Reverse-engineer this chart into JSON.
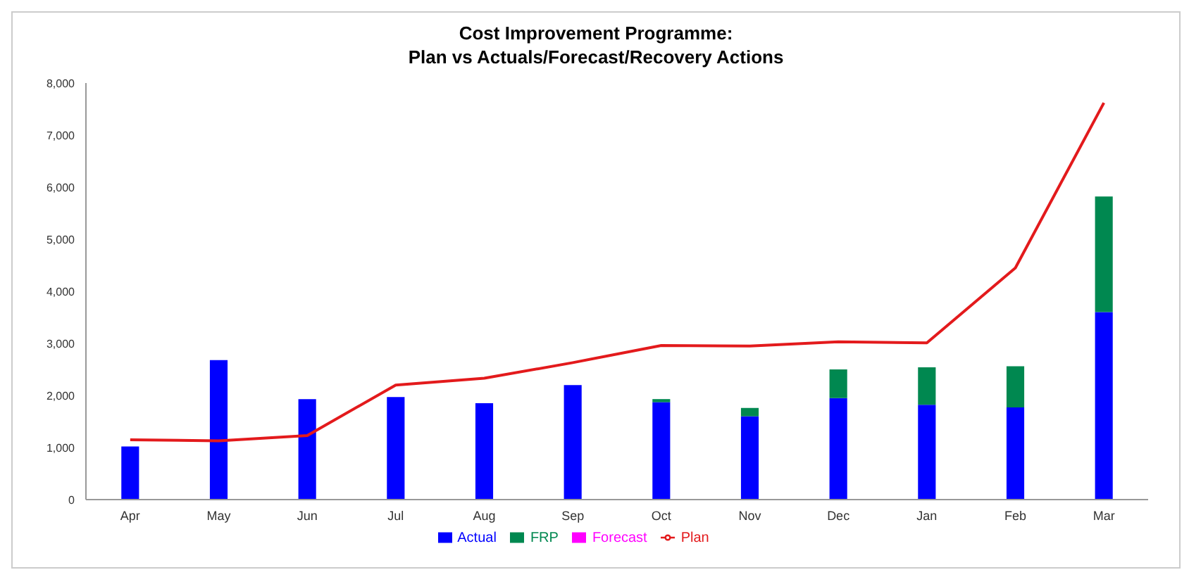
{
  "chart_data": {
    "type": "bar",
    "title": "Cost Improvement Programme:\nPlan vs Actuals/Forecast/Recovery Actions",
    "categories": [
      "Apr",
      "May",
      "Jun",
      "Jul",
      "Aug",
      "Sep",
      "Oct",
      "Nov",
      "Dec",
      "Jan",
      "Feb",
      "Mar"
    ],
    "stacked": true,
    "series": [
      {
        "name": "Actual",
        "color": "#0000ff",
        "values": [
          1020,
          2680,
          1930,
          1970,
          1850,
          2200,
          1870,
          1600,
          1950,
          1820,
          1770,
          3600
        ]
      },
      {
        "name": "Forecast",
        "color": "#ff00ff",
        "values": [
          null,
          null,
          null,
          null,
          null,
          null,
          null,
          null,
          null,
          null,
          null,
          null
        ]
      },
      {
        "name": "FRP",
        "color": "#008850",
        "values": [
          null,
          null,
          null,
          null,
          null,
          null,
          60,
          160,
          550,
          720,
          790,
          2220
        ]
      },
      {
        "name": "Plan",
        "type": "line",
        "color": "#e31a1c",
        "values": [
          1150,
          1130,
          1230,
          2200,
          2330,
          2630,
          2960,
          2950,
          3030,
          3010,
          4450,
          7620
        ]
      }
    ],
    "ylim": [
      0,
      8000
    ],
    "yticks": [
      {
        "value": 0,
        "label": "0"
      },
      {
        "value": 1000,
        "label": "1,000"
      },
      {
        "value": 2000,
        "label": "2,000"
      },
      {
        "value": 3000,
        "label": "3,000"
      },
      {
        "value": 4000,
        "label": "4,000"
      },
      {
        "value": 5000,
        "label": "5,000"
      },
      {
        "value": 6000,
        "label": "6,000"
      },
      {
        "value": 7000,
        "label": "7,000"
      },
      {
        "value": 8000,
        "label": "8,000"
      }
    ],
    "grid": false,
    "legend": "bottom",
    "marker": "none"
  }
}
